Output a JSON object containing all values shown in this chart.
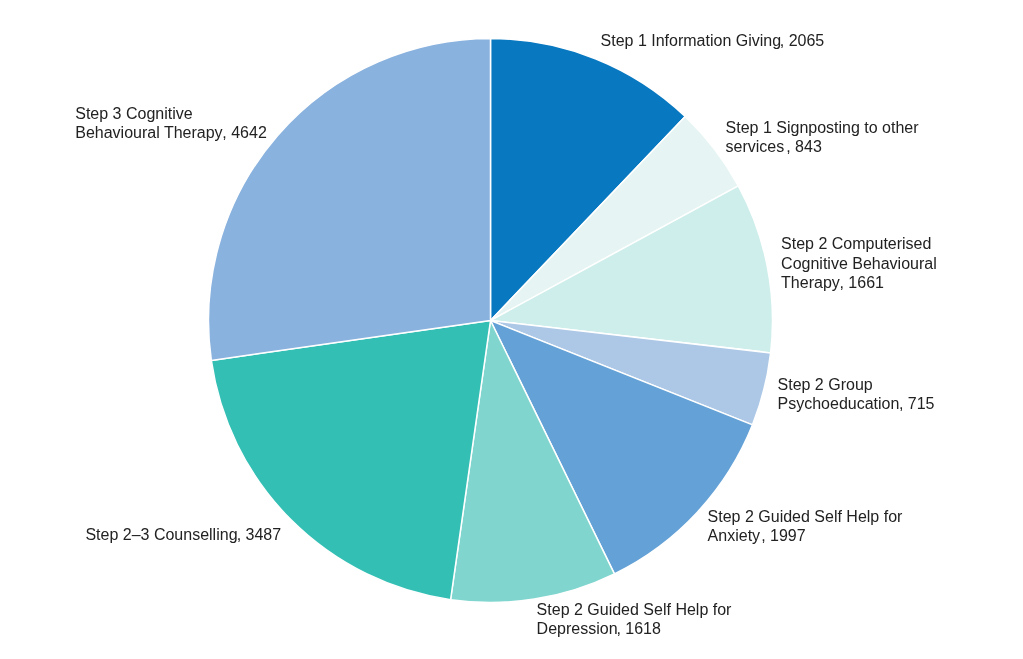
{
  "chart_data": {
    "type": "pie",
    "categories": [
      "Step 1 Information Giving",
      "Step 1 Signposting to other services",
      "Step 2 Computerised Cognitive Behavioural Therapy",
      "Step 2 Group Psychoeducation",
      "Step 2 Guided Self Help for Anxiety",
      "Step 2 Guided Self Help for Depression",
      "Step 2–3 Counselling",
      "Step 3 Cognitive Behavioural Therapy"
    ],
    "values": [
      2065,
      843,
      1661,
      715,
      1997,
      1618,
      3487,
      4642
    ],
    "value_labels": [
      ", 2065",
      ", 843",
      ", 1661",
      ", 715",
      ", 1997",
      ", 1618",
      ", 3487",
      ", 4642"
    ],
    "colors": [
      "#0878c0",
      "#e6f5f3",
      "#cdeeea",
      "#adc8e6",
      "#64a1d6",
      "#80d6cf",
      "#33bfb4",
      "#8ab2de"
    ]
  }
}
